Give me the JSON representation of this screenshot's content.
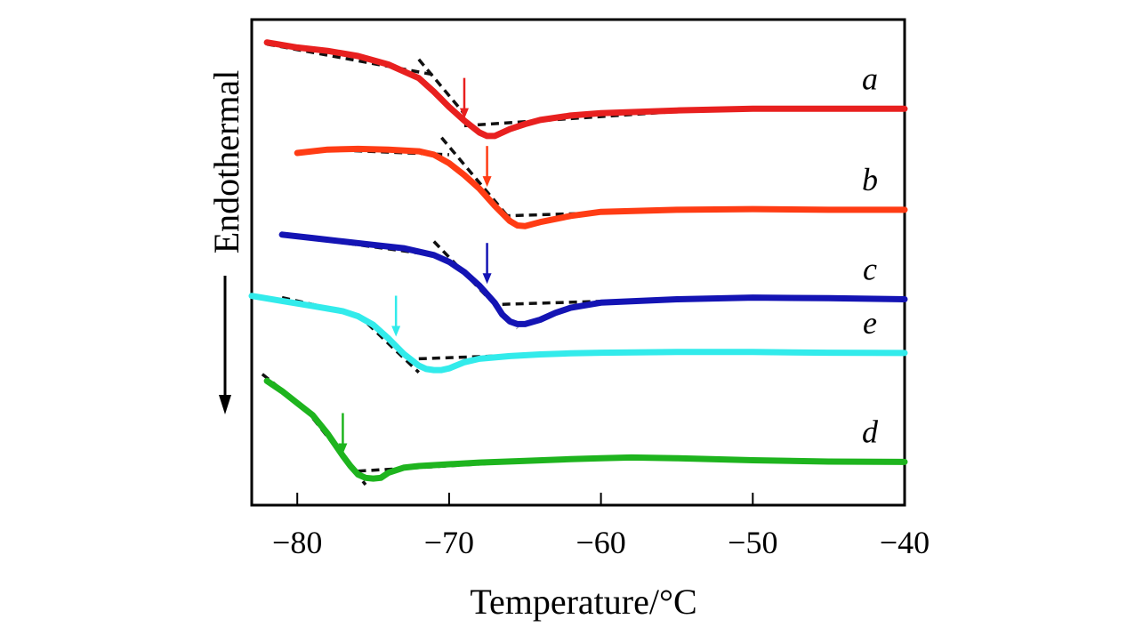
{
  "chart_data": {
    "type": "line",
    "title": "",
    "xlabel": "Temperature/°C",
    "ylabel": "Endothermal",
    "xlim": [
      -83,
      -40
    ],
    "xticks": [
      -80,
      -70,
      -60,
      -50,
      -40
    ],
    "x_tick_labels": [
      "−80",
      "−70",
      "−60",
      "−50",
      "−40"
    ],
    "y_axis_note": "arbitrary units, curves vertically offset; arrow points down (endothermal)",
    "grid": false,
    "legend": "labels at right end of each curve",
    "series": [
      {
        "name": "a",
        "color": "#e8201f",
        "x": [
          -82,
          -80,
          -78,
          -76,
          -74,
          -72,
          -71,
          -70,
          -69,
          -68,
          -67.5,
          -67,
          -66,
          -65,
          -64,
          -62,
          -60,
          -55,
          -50,
          -45,
          -40
        ],
        "y": [
          10.0,
          9.85,
          9.75,
          9.6,
          9.35,
          8.95,
          8.55,
          8.1,
          7.7,
          7.35,
          7.25,
          7.25,
          7.45,
          7.6,
          7.72,
          7.85,
          7.92,
          8.0,
          8.05,
          8.05,
          8.05
        ],
        "tangent_lines": [
          {
            "x": [
              -82,
              -71
            ],
            "y": [
              9.95,
              9.05
            ]
          },
          {
            "x": [
              -72,
              -69
            ],
            "y": [
              9.5,
              7.9
            ]
          },
          {
            "x": [
              -69,
              -54
            ],
            "y": [
              7.55,
              8.0
            ]
          }
        ],
        "arrow_x": -69
      },
      {
        "name": "b",
        "color": "#ff3c14",
        "x": [
          -80,
          -78,
          -76,
          -74,
          -72,
          -71,
          -70,
          -69,
          -68,
          -67,
          -66,
          -65.5,
          -65,
          -64,
          -62,
          -60,
          -55,
          -50,
          -45,
          -40
        ],
        "y": [
          6.75,
          6.85,
          6.87,
          6.85,
          6.8,
          6.7,
          6.45,
          6.1,
          5.7,
          5.2,
          4.75,
          4.62,
          4.6,
          4.72,
          4.9,
          5.02,
          5.08,
          5.1,
          5.08,
          5.08
        ],
        "tangent_lines": [
          {
            "x": [
              -78,
              -70
            ],
            "y": [
              6.85,
              6.7
            ]
          },
          {
            "x": [
              -70.5,
              -65.5
            ],
            "y": [
              7.2,
              4.55
            ]
          },
          {
            "x": [
              -66.5,
              -52
            ],
            "y": [
              4.9,
              5.1
            ]
          }
        ],
        "arrow_x": -67.5
      },
      {
        "name": "c",
        "color": "#1414b4",
        "x": [
          -81,
          -79,
          -77,
          -75,
          -73,
          -71,
          -70,
          -69,
          -68,
          -67,
          -66.5,
          -66,
          -65.5,
          -65,
          -64,
          -63,
          -62,
          -60,
          -55,
          -50,
          -45,
          -40
        ],
        "y": [
          4.35,
          4.25,
          4.15,
          4.05,
          3.95,
          3.75,
          3.55,
          3.25,
          2.85,
          2.35,
          2.0,
          1.8,
          1.72,
          1.72,
          1.85,
          2.05,
          2.2,
          2.35,
          2.45,
          2.5,
          2.48,
          2.45
        ],
        "tangent_lines": [
          {
            "x": [
              -81,
              -71
            ],
            "y": [
              4.35,
              3.75
            ]
          },
          {
            "x": [
              -71,
              -65.5
            ],
            "y": [
              4.15,
              1.6
            ]
          },
          {
            "x": [
              -66.5,
              -52
            ],
            "y": [
              2.3,
              2.5
            ]
          }
        ],
        "arrow_x": -67.5
      },
      {
        "name": "e",
        "color": "#32ebeb",
        "x": [
          -83,
          -81,
          -79,
          -77,
          -76,
          -75,
          -74,
          -73,
          -72,
          -71.5,
          -71,
          -70.5,
          -70,
          -69,
          -68,
          -66,
          -64,
          -62,
          -60,
          -55,
          -50,
          -45,
          -40
        ],
        "y": [
          2.55,
          2.4,
          2.25,
          2.1,
          1.95,
          1.7,
          1.3,
          0.85,
          0.5,
          0.4,
          0.37,
          0.37,
          0.42,
          0.6,
          0.7,
          0.78,
          0.83,
          0.86,
          0.88,
          0.9,
          0.9,
          0.88,
          0.87
        ],
        "tangent_lines": [
          {
            "x": [
              -81,
              -76
            ],
            "y": [
              2.5,
              2.0
            ]
          },
          {
            "x": [
              -76,
              -72
            ],
            "y": [
              2.0,
              0.3
            ]
          },
          {
            "x": [
              -72,
              -59.5
            ],
            "y": [
              0.7,
              0.9
            ]
          }
        ],
        "arrow_x": -73.5
      },
      {
        "name": "d",
        "color": "#1eb41e",
        "x": [
          -82,
          -81,
          -80,
          -79,
          -78,
          -77,
          -76.5,
          -76,
          -75.5,
          -75,
          -74.5,
          -74,
          -73,
          -72,
          -70,
          -68,
          -65,
          -62,
          -60,
          -58,
          -55,
          -50,
          -45,
          -40
        ],
        "y": [
          0.05,
          -0.25,
          -0.6,
          -0.95,
          -1.5,
          -2.15,
          -2.45,
          -2.7,
          -2.8,
          -2.82,
          -2.8,
          -2.65,
          -2.5,
          -2.45,
          -2.4,
          -2.35,
          -2.3,
          -2.25,
          -2.22,
          -2.2,
          -2.22,
          -2.28,
          -2.32,
          -2.33
        ],
        "tangent_lines": [
          {
            "x": [
              -82.3,
              -79.5
            ],
            "y": [
              0.25,
              -0.75
            ]
          },
          {
            "x": [
              -79.5,
              -75.5
            ],
            "y": [
              -0.75,
              -3.0
            ]
          },
          {
            "x": [
              -76,
              -62.5
            ],
            "y": [
              -2.6,
              -2.25
            ]
          }
        ],
        "arrow_x": -77
      }
    ]
  }
}
